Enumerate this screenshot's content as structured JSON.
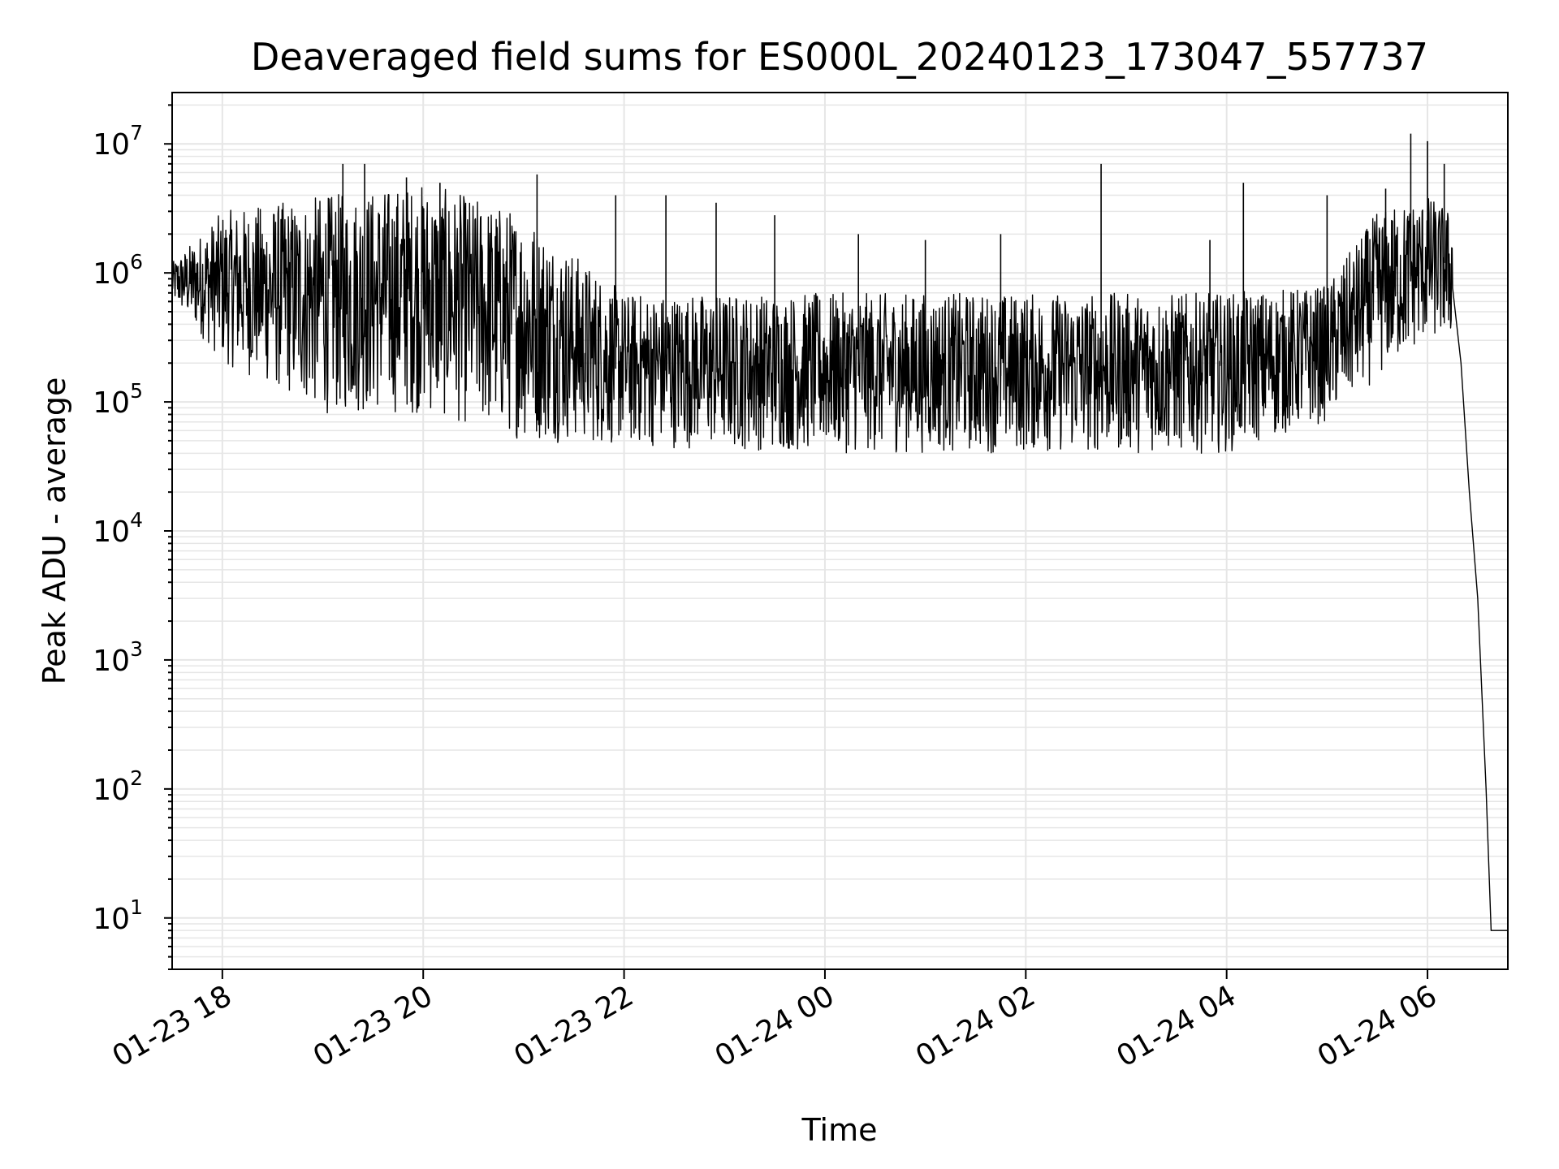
{
  "chart_data": {
    "type": "line",
    "title": "Deaveraged field sums for ES000L_20240123_173047_557737",
    "xlabel": "Time",
    "ylabel": "Peak ADU - average",
    "yscale": "log",
    "xlim": [
      "2024-01-23 17:30",
      "2024-01-24 06:48"
    ],
    "ylim": [
      4,
      25000000
    ],
    "grid": true,
    "line_color": "#000000",
    "grid_color": "#e6e6e6",
    "x_ticks": [
      {
        "t": "2024-01-23 18:00",
        "label": "01-23 18"
      },
      {
        "t": "2024-01-23 20:00",
        "label": "01-23 20"
      },
      {
        "t": "2024-01-23 22:00",
        "label": "01-23 22"
      },
      {
        "t": "2024-01-24 00:00",
        "label": "01-24 00"
      },
      {
        "t": "2024-01-24 02:00",
        "label": "01-24 02"
      },
      {
        "t": "2024-01-24 04:00",
        "label": "01-24 04"
      },
      {
        "t": "2024-01-24 06:00",
        "label": "01-24 06"
      }
    ],
    "y_ticks": [
      {
        "value": 10,
        "base": "10",
        "exp": "1"
      },
      {
        "value": 100,
        "base": "10",
        "exp": "2"
      },
      {
        "value": 1000,
        "base": "10",
        "exp": "3"
      },
      {
        "value": 10000,
        "base": "10",
        "exp": "4"
      },
      {
        "value": 100000,
        "base": "10",
        "exp": "5"
      },
      {
        "value": 1000000,
        "base": "10",
        "exp": "6"
      },
      {
        "value": 10000000,
        "base": "10",
        "exp": "7"
      }
    ],
    "series": [
      {
        "points": [
          [
            "2024-01-23 17:30",
            800000
          ],
          [
            "2024-01-23 18:00",
            700000
          ],
          [
            "2024-01-23 18:30",
            500000
          ],
          [
            "2024-01-23 19:00",
            450000
          ],
          [
            "2024-01-23 19:30",
            400000
          ],
          [
            "2024-01-23 20:00",
            400000
          ],
          [
            "2024-01-23 20:30",
            350000
          ],
          [
            "2024-01-23 21:00",
            200000
          ],
          [
            "2024-01-23 21:30",
            180000
          ],
          [
            "2024-01-23 22:00",
            120000
          ],
          [
            "2024-01-23 23:00",
            110000
          ],
          [
            "2024-01-24 00:00",
            110000
          ],
          [
            "2024-01-24 01:00",
            110000
          ],
          [
            "2024-01-24 02:00",
            110000
          ],
          [
            "2024-01-24 03:00",
            110000
          ],
          [
            "2024-01-24 04:00",
            130000
          ],
          [
            "2024-01-24 05:00",
            200000
          ],
          [
            "2024-01-24 05:30",
            300000
          ],
          [
            "2024-01-24 05:45",
            1000000
          ],
          [
            "2024-01-24 06:15",
            800000
          ],
          [
            "2024-01-24 06:20",
            200000
          ],
          [
            "2024-01-24 06:25",
            20000
          ],
          [
            "2024-01-24 06:30",
            3000
          ],
          [
            "2024-01-24 06:35",
            100
          ],
          [
            "2024-01-24 06:38",
            8
          ],
          [
            "2024-01-24 06:48",
            8
          ]
        ],
        "envelope": [
          [
            "2024-01-23 17:30",
            600000,
            1200000
          ],
          [
            "2024-01-23 18:00",
            200000,
            3000000
          ],
          [
            "2024-01-23 19:00",
            80000,
            4000000
          ],
          [
            "2024-01-23 20:00",
            80000,
            5000000
          ],
          [
            "2024-01-23 21:00",
            50000,
            3000000
          ],
          [
            "2024-01-23 22:00",
            45000,
            700000
          ],
          [
            "2024-01-24 00:00",
            40000,
            700000
          ],
          [
            "2024-01-24 02:00",
            40000,
            700000
          ],
          [
            "2024-01-24 04:00",
            40000,
            700000
          ],
          [
            "2024-01-24 05:00",
            70000,
            800000
          ],
          [
            "2024-01-24 05:30",
            150000,
            3000000
          ],
          [
            "2024-01-24 06:00",
            300000,
            4000000
          ],
          [
            "2024-01-24 06:15",
            300000,
            3000000
          ]
        ],
        "spikes": [
          [
            "2024-01-23 19:12",
            7000000
          ],
          [
            "2024-01-23 19:25",
            7000000
          ],
          [
            "2024-01-23 19:50",
            5500000
          ],
          [
            "2024-01-23 20:10",
            5000000
          ],
          [
            "2024-01-23 21:08",
            5800000
          ],
          [
            "2024-01-23 21:55",
            4000000
          ],
          [
            "2024-01-23 22:25",
            4000000
          ],
          [
            "2024-01-23 22:55",
            3500000
          ],
          [
            "2024-01-23 23:30",
            2800000
          ],
          [
            "2024-01-24 00:20",
            2000000
          ],
          [
            "2024-01-24 01:00",
            1800000
          ],
          [
            "2024-01-24 01:45",
            2000000
          ],
          [
            "2024-01-24 02:45",
            7000000
          ],
          [
            "2024-01-24 03:50",
            1800000
          ],
          [
            "2024-01-24 04:10",
            5000000
          ],
          [
            "2024-01-24 05:00",
            4000000
          ],
          [
            "2024-01-24 05:35",
            4500000
          ],
          [
            "2024-01-24 05:50",
            12000000
          ],
          [
            "2024-01-24 06:00",
            10500000
          ],
          [
            "2024-01-24 06:10",
            7000000
          ]
        ]
      }
    ]
  }
}
